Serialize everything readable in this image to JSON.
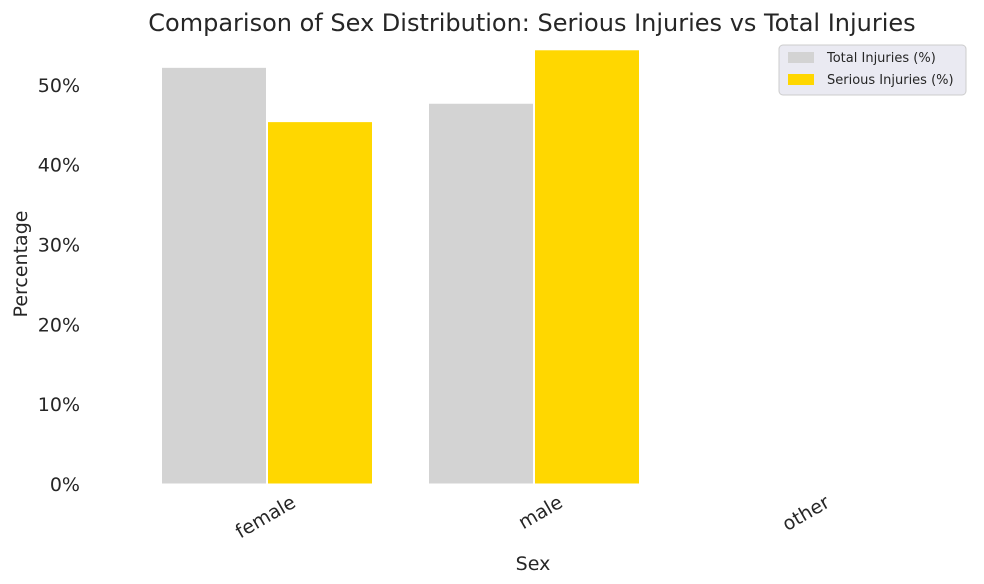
{
  "chart_data": {
    "type": "bar",
    "title": "Comparison of Sex Distribution: Serious Injuries vs Total Injuries",
    "xlabel": "Sex",
    "ylabel": "Percentage",
    "categories": [
      "female",
      "male",
      "other"
    ],
    "series": [
      {
        "name": "Total Injuries (%)",
        "values": [
          52.2,
          47.7,
          0
        ],
        "color": "#d3d3d3"
      },
      {
        "name": "Serious Injuries (%)",
        "values": [
          45.4,
          54.4,
          0
        ],
        "color": "#ffd700"
      }
    ],
    "ylim": [
      0,
      55
    ],
    "yticks": [
      0,
      10,
      20,
      30,
      40,
      50
    ],
    "ytick_labels": [
      "0%",
      "10%",
      "20%",
      "30%",
      "40%",
      "50%"
    ],
    "grid": false,
    "legend_position": "top-right",
    "legend_background": "#eaeaf2"
  }
}
